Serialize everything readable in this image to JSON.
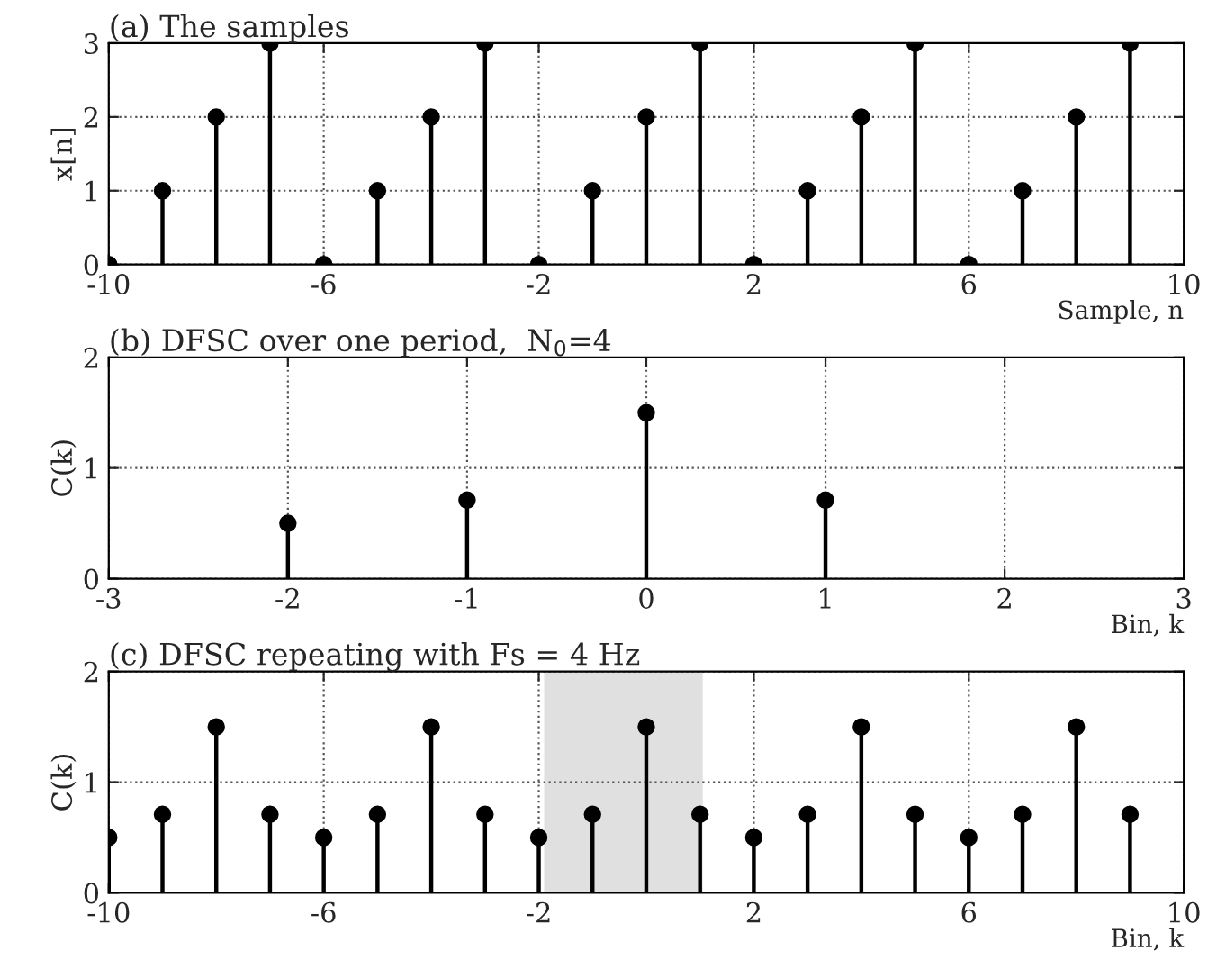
{
  "chart_data": [
    {
      "type": "lollipop",
      "title": "(a) The samples",
      "xlabel": "Sample, n",
      "ylabel": "x[n]",
      "x": [
        -10,
        -9,
        -8,
        -7,
        -6,
        -5,
        -4,
        -3,
        -2,
        -1,
        0,
        1,
        2,
        3,
        4,
        5,
        6,
        7,
        8,
        9
      ],
      "series": [
        {
          "color": "#000000",
          "values": [
            0,
            1,
            2,
            3,
            0,
            1,
            2,
            3,
            0,
            1,
            2,
            3,
            0,
            1,
            2,
            3,
            0,
            1,
            2,
            3
          ]
        }
      ],
      "xlim": [
        -10,
        10
      ],
      "xticks": [
        -10,
        -6,
        -2,
        2,
        6,
        10
      ],
      "ylim": [
        0,
        3
      ],
      "yticks": [
        0,
        1,
        2,
        3
      ],
      "grid": true,
      "marker": "circle"
    },
    {
      "type": "lollipop",
      "title": "(b) DFSC over one period,  N$_{0}$=4",
      "xlabel": "Bin, k",
      "ylabel": "C(k)",
      "x": [
        -2,
        -1,
        0,
        1
      ],
      "series": [
        {
          "color": "#000000",
          "values": [
            0.5,
            0.71,
            1.5,
            0.71
          ]
        }
      ],
      "xlim": [
        -3,
        3
      ],
      "xticks": [
        -3,
        -2,
        -1,
        0,
        1,
        2,
        3
      ],
      "ylim": [
        0,
        2
      ],
      "yticks": [
        0,
        1,
        2
      ],
      "grid": true,
      "marker": "circle"
    },
    {
      "type": "lollipop",
      "title": "(c) DFSC repeating with Fs = 4 Hz",
      "xlabel": "Bin, k",
      "ylabel": "C(k)",
      "x": [
        -10,
        -9,
        -8,
        -7,
        -6,
        -5,
        -4,
        -3,
        -2,
        -1,
        0,
        1,
        2,
        3,
        4,
        5,
        6,
        7,
        8,
        9
      ],
      "series": [
        {
          "color": "#000000",
          "values": [
            0.5,
            0.71,
            1.5,
            0.71,
            0.5,
            0.71,
            1.5,
            0.71,
            0.5,
            0.71,
            1.5,
            0.71,
            0.5,
            0.71,
            1.5,
            0.71,
            0.5,
            0.71,
            1.5,
            0.71
          ]
        }
      ],
      "bands": [
        {
          "axis": "x",
          "from": -1.9,
          "to": 1.05,
          "color": "#e0e0e0"
        }
      ],
      "xlim": [
        -10,
        10
      ],
      "xticks": [
        -10,
        -6,
        -2,
        2,
        6,
        10
      ],
      "ylim": [
        0,
        2
      ],
      "yticks": [
        0,
        1,
        2
      ],
      "grid": true,
      "marker": "circle"
    }
  ]
}
